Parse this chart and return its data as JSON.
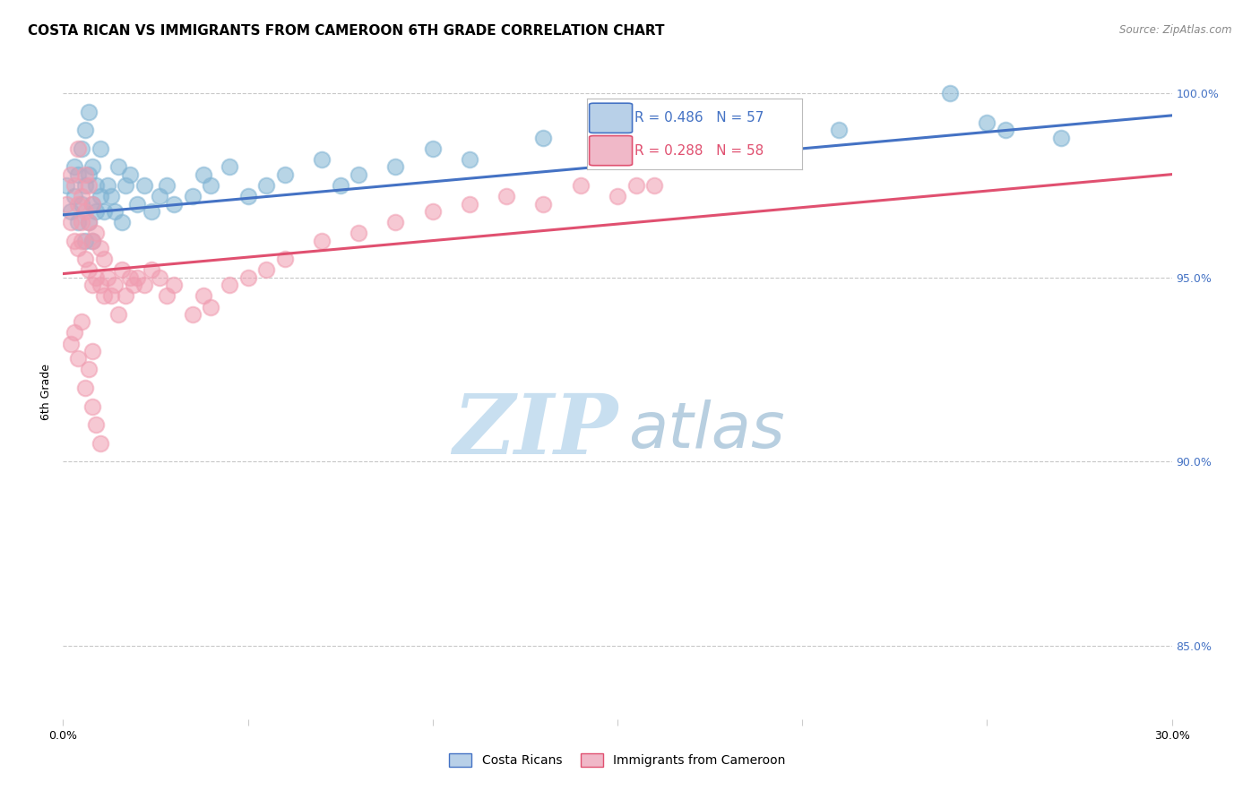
{
  "title": "COSTA RICAN VS IMMIGRANTS FROM CAMEROON 6TH GRADE CORRELATION CHART",
  "source": "Source: ZipAtlas.com",
  "ylabel": "6th Grade",
  "xlim": [
    0.0,
    0.3
  ],
  "ylim": [
    0.83,
    1.008
  ],
  "x_ticks": [
    0.0,
    0.05,
    0.1,
    0.15,
    0.2,
    0.25,
    0.3
  ],
  "x_tick_labels": [
    "0.0%",
    "",
    "",
    "",
    "",
    "",
    "30.0%"
  ],
  "y_ticks": [
    0.85,
    0.9,
    0.95,
    1.0
  ],
  "y_tick_labels": [
    "85.0%",
    "90.0%",
    "95.0%",
    "100.0%"
  ],
  "blue_R": 0.486,
  "blue_N": 57,
  "pink_R": 0.288,
  "pink_N": 58,
  "blue_color": "#7fb3d3",
  "pink_color": "#f09cb0",
  "trendline_blue": "#4472c4",
  "trendline_pink": "#e05070",
  "blue_scatter_x": [
    0.001,
    0.002,
    0.003,
    0.003,
    0.004,
    0.004,
    0.005,
    0.005,
    0.006,
    0.006,
    0.006,
    0.007,
    0.007,
    0.007,
    0.008,
    0.008,
    0.008,
    0.009,
    0.009,
    0.01,
    0.01,
    0.011,
    0.012,
    0.013,
    0.014,
    0.015,
    0.016,
    0.017,
    0.018,
    0.02,
    0.022,
    0.024,
    0.026,
    0.028,
    0.03,
    0.035,
    0.038,
    0.04,
    0.045,
    0.05,
    0.055,
    0.06,
    0.07,
    0.075,
    0.08,
    0.09,
    0.1,
    0.11,
    0.13,
    0.15,
    0.17,
    0.19,
    0.21,
    0.24,
    0.25,
    0.255,
    0.27
  ],
  "blue_scatter_y": [
    0.975,
    0.968,
    0.972,
    0.98,
    0.965,
    0.978,
    0.97,
    0.985,
    0.96,
    0.975,
    0.99,
    0.965,
    0.978,
    0.995,
    0.97,
    0.98,
    0.96,
    0.975,
    0.968,
    0.972,
    0.985,
    0.968,
    0.975,
    0.972,
    0.968,
    0.98,
    0.965,
    0.975,
    0.978,
    0.97,
    0.975,
    0.968,
    0.972,
    0.975,
    0.97,
    0.972,
    0.978,
    0.975,
    0.98,
    0.972,
    0.975,
    0.978,
    0.982,
    0.975,
    0.978,
    0.98,
    0.985,
    0.982,
    0.988,
    0.985,
    0.99,
    0.988,
    0.99,
    1.0,
    0.992,
    0.99,
    0.988
  ],
  "pink_scatter_x": [
    0.001,
    0.002,
    0.002,
    0.003,
    0.003,
    0.004,
    0.004,
    0.004,
    0.005,
    0.005,
    0.005,
    0.006,
    0.006,
    0.006,
    0.007,
    0.007,
    0.007,
    0.008,
    0.008,
    0.008,
    0.009,
    0.009,
    0.01,
    0.01,
    0.011,
    0.011,
    0.012,
    0.013,
    0.014,
    0.015,
    0.016,
    0.017,
    0.018,
    0.019,
    0.02,
    0.022,
    0.024,
    0.026,
    0.028,
    0.03,
    0.035,
    0.038,
    0.04,
    0.045,
    0.05,
    0.055,
    0.06,
    0.07,
    0.08,
    0.09,
    0.1,
    0.11,
    0.12,
    0.13,
    0.14,
    0.15,
    0.155,
    0.16
  ],
  "pink_scatter_y": [
    0.97,
    0.965,
    0.978,
    0.96,
    0.975,
    0.958,
    0.97,
    0.985,
    0.96,
    0.972,
    0.965,
    0.955,
    0.968,
    0.978,
    0.952,
    0.965,
    0.975,
    0.948,
    0.96,
    0.97,
    0.95,
    0.962,
    0.948,
    0.958,
    0.945,
    0.955,
    0.95,
    0.945,
    0.948,
    0.94,
    0.952,
    0.945,
    0.95,
    0.948,
    0.95,
    0.948,
    0.952,
    0.95,
    0.945,
    0.948,
    0.94,
    0.945,
    0.942,
    0.948,
    0.95,
    0.952,
    0.955,
    0.96,
    0.962,
    0.965,
    0.968,
    0.97,
    0.972,
    0.97,
    0.975,
    0.972,
    0.975,
    0.975
  ],
  "pink_low_x": [
    0.002,
    0.003,
    0.004,
    0.005,
    0.006,
    0.007,
    0.008,
    0.008,
    0.009,
    0.01
  ],
  "pink_low_y": [
    0.932,
    0.935,
    0.928,
    0.938,
    0.92,
    0.925,
    0.915,
    0.93,
    0.91,
    0.905
  ],
  "watermark_zip": "ZIP",
  "watermark_atlas": "atlas",
  "watermark_color_zip": "#c8dff0",
  "watermark_color_atlas": "#b8cfe0",
  "legend_box_color_blue": "#b8d0e8",
  "legend_box_color_pink": "#f0b8c8",
  "title_fontsize": 11,
  "axis_label_fontsize": 9,
  "tick_fontsize": 9,
  "right_tick_color": "#4472c4"
}
